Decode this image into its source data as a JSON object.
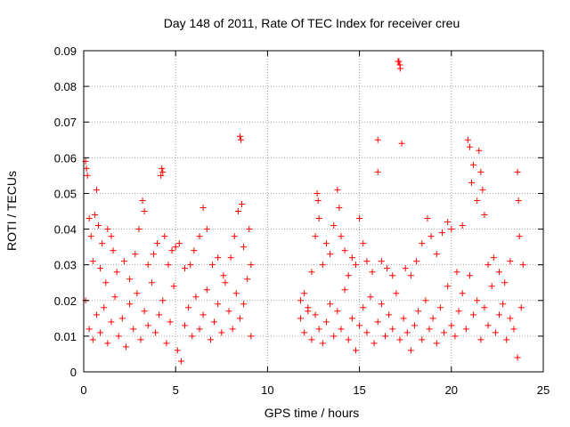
{
  "chart_data": {
    "type": "scatter",
    "title": "Day 148 of 2011, Rate Of TEC Index for receiver creu",
    "xlabel": "GPS time / hours",
    "ylabel": "ROTI / TECUs",
    "xlim": [
      0,
      25
    ],
    "ylim": [
      0,
      0.09
    ],
    "x_ticks": [
      0,
      5,
      10,
      15,
      20,
      25
    ],
    "y_ticks": [
      0,
      0.01,
      0.02,
      0.03,
      0.04,
      0.05,
      0.06,
      0.07,
      0.08,
      0.09
    ],
    "x_tick_labels": [
      "0",
      "5",
      "10",
      "15",
      "20",
      "25"
    ],
    "y_tick_labels": [
      "0",
      "0.01",
      "0.02",
      "0.03",
      "0.04",
      "0.05",
      "0.06",
      "0.07",
      "0.08",
      "0.09"
    ],
    "grid": true,
    "marker": "+",
    "color": "#ff0000",
    "series": [
      {
        "points": [
          [
            0.1,
            0.059
          ],
          [
            0.15,
            0.057
          ],
          [
            0.2,
            0.055
          ],
          [
            0.3,
            0.043
          ],
          [
            0.4,
            0.038
          ],
          [
            0.5,
            0.031
          ],
          [
            0.6,
            0.044
          ],
          [
            0.7,
            0.051
          ],
          [
            0.8,
            0.041
          ],
          [
            0.9,
            0.029
          ],
          [
            1.0,
            0.036
          ],
          [
            1.2,
            0.025
          ],
          [
            1.3,
            0.04
          ],
          [
            1.5,
            0.038
          ],
          [
            1.6,
            0.034
          ],
          [
            1.8,
            0.028
          ],
          [
            2.2,
            0.031
          ],
          [
            2.5,
            0.026
          ],
          [
            2.8,
            0.033
          ],
          [
            3.0,
            0.04
          ],
          [
            3.2,
            0.048
          ],
          [
            3.3,
            0.045
          ],
          [
            3.5,
            0.03
          ],
          [
            3.8,
            0.033
          ],
          [
            4.0,
            0.036
          ],
          [
            4.2,
            0.055
          ],
          [
            4.25,
            0.057
          ],
          [
            4.3,
            0.056
          ],
          [
            4.4,
            0.038
          ],
          [
            4.6,
            0.03
          ],
          [
            4.8,
            0.034
          ],
          [
            5.0,
            0.035
          ],
          [
            5.2,
            0.036
          ],
          [
            5.5,
            0.029
          ],
          [
            5.8,
            0.03
          ],
          [
            6.0,
            0.034
          ],
          [
            6.3,
            0.038
          ],
          [
            6.5,
            0.046
          ],
          [
            6.7,
            0.04
          ],
          [
            7.0,
            0.03
          ],
          [
            7.3,
            0.032
          ],
          [
            7.6,
            0.027
          ],
          [
            8.0,
            0.032
          ],
          [
            8.2,
            0.038
          ],
          [
            8.4,
            0.045
          ],
          [
            8.5,
            0.066
          ],
          [
            8.55,
            0.065
          ],
          [
            8.6,
            0.047
          ],
          [
            8.7,
            0.035
          ],
          [
            9.0,
            0.04
          ],
          [
            9.1,
            0.03
          ],
          [
            0.1,
            0.02
          ],
          [
            0.3,
            0.012
          ],
          [
            0.5,
            0.009
          ],
          [
            0.7,
            0.016
          ],
          [
            0.9,
            0.011
          ],
          [
            1.1,
            0.018
          ],
          [
            1.3,
            0.008
          ],
          [
            1.5,
            0.014
          ],
          [
            1.7,
            0.021
          ],
          [
            1.9,
            0.01
          ],
          [
            2.1,
            0.015
          ],
          [
            2.3,
            0.007
          ],
          [
            2.5,
            0.019
          ],
          [
            2.7,
            0.012
          ],
          [
            2.9,
            0.022
          ],
          [
            3.1,
            0.009
          ],
          [
            3.3,
            0.017
          ],
          [
            3.5,
            0.013
          ],
          [
            3.7,
            0.025
          ],
          [
            3.9,
            0.011
          ],
          [
            4.1,
            0.016
          ],
          [
            4.3,
            0.02
          ],
          [
            4.5,
            0.008
          ],
          [
            4.7,
            0.014
          ],
          [
            4.9,
            0.024
          ],
          [
            5.1,
            0.006
          ],
          [
            5.3,
            0.003
          ],
          [
            5.5,
            0.013
          ],
          [
            5.7,
            0.018
          ],
          [
            5.9,
            0.01
          ],
          [
            6.1,
            0.021
          ],
          [
            6.3,
            0.012
          ],
          [
            6.5,
            0.016
          ],
          [
            6.7,
            0.023
          ],
          [
            6.9,
            0.009
          ],
          [
            7.1,
            0.014
          ],
          [
            7.3,
            0.019
          ],
          [
            7.5,
            0.011
          ],
          [
            7.7,
            0.025
          ],
          [
            7.9,
            0.017
          ],
          [
            8.1,
            0.012
          ],
          [
            8.3,
            0.022
          ],
          [
            8.5,
            0.015
          ],
          [
            8.7,
            0.019
          ],
          [
            8.9,
            0.026
          ],
          [
            9.1,
            0.01
          ],
          [
            11.8,
            0.02
          ],
          [
            12.0,
            0.022
          ],
          [
            12.2,
            0.017
          ],
          [
            12.4,
            0.028
          ],
          [
            12.6,
            0.038
          ],
          [
            12.7,
            0.05
          ],
          [
            12.75,
            0.048
          ],
          [
            12.8,
            0.043
          ],
          [
            13.0,
            0.03
          ],
          [
            13.2,
            0.036
          ],
          [
            13.4,
            0.033
          ],
          [
            13.6,
            0.041
          ],
          [
            13.8,
            0.051
          ],
          [
            13.9,
            0.046
          ],
          [
            14.0,
            0.038
          ],
          [
            14.2,
            0.034
          ],
          [
            14.4,
            0.027
          ],
          [
            14.6,
            0.032
          ],
          [
            14.8,
            0.03
          ],
          [
            15.0,
            0.043
          ],
          [
            15.2,
            0.036
          ],
          [
            15.4,
            0.031
          ],
          [
            15.7,
            0.028
          ],
          [
            16.0,
            0.065
          ],
          [
            16.0,
            0.056
          ],
          [
            16.2,
            0.031
          ],
          [
            16.5,
            0.029
          ],
          [
            16.8,
            0.027
          ],
          [
            17.1,
            0.087
          ],
          [
            17.15,
            0.087
          ],
          [
            17.2,
            0.086
          ],
          [
            17.22,
            0.085
          ],
          [
            17.3,
            0.064
          ],
          [
            17.5,
            0.029
          ],
          [
            17.8,
            0.027
          ],
          [
            18.1,
            0.031
          ],
          [
            18.4,
            0.036
          ],
          [
            18.7,
            0.043
          ],
          [
            18.9,
            0.038
          ],
          [
            19.2,
            0.033
          ],
          [
            19.5,
            0.039
          ],
          [
            19.8,
            0.042
          ],
          [
            20.0,
            0.04
          ],
          [
            20.3,
            0.028
          ],
          [
            20.6,
            0.041
          ],
          [
            20.9,
            0.065
          ],
          [
            21.0,
            0.063
          ],
          [
            21.1,
            0.053
          ],
          [
            21.2,
            0.058
          ],
          [
            21.4,
            0.048
          ],
          [
            21.5,
            0.062
          ],
          [
            21.6,
            0.056
          ],
          [
            21.7,
            0.051
          ],
          [
            21.8,
            0.044
          ],
          [
            22.0,
            0.03
          ],
          [
            22.3,
            0.032
          ],
          [
            22.6,
            0.028
          ],
          [
            22.9,
            0.025
          ],
          [
            23.2,
            0.031
          ],
          [
            23.6,
            0.056
          ],
          [
            23.65,
            0.048
          ],
          [
            23.7,
            0.038
          ],
          [
            23.9,
            0.03
          ],
          [
            11.8,
            0.015
          ],
          [
            12.0,
            0.011
          ],
          [
            12.2,
            0.018
          ],
          [
            12.4,
            0.009
          ],
          [
            12.6,
            0.016
          ],
          [
            12.8,
            0.012
          ],
          [
            13.0,
            0.008
          ],
          [
            13.2,
            0.014
          ],
          [
            13.4,
            0.019
          ],
          [
            13.6,
            0.01
          ],
          [
            13.8,
            0.017
          ],
          [
            14.0,
            0.012
          ],
          [
            14.2,
            0.023
          ],
          [
            14.4,
            0.009
          ],
          [
            14.6,
            0.015
          ],
          [
            14.8,
            0.006
          ],
          [
            15.0,
            0.013
          ],
          [
            15.2,
            0.018
          ],
          [
            15.4,
            0.011
          ],
          [
            15.6,
            0.021
          ],
          [
            15.8,
            0.008
          ],
          [
            16.0,
            0.014
          ],
          [
            16.2,
            0.019
          ],
          [
            16.4,
            0.01
          ],
          [
            16.6,
            0.016
          ],
          [
            16.8,
            0.012
          ],
          [
            17.0,
            0.022
          ],
          [
            17.2,
            0.009
          ],
          [
            17.4,
            0.015
          ],
          [
            17.6,
            0.011
          ],
          [
            17.8,
            0.006
          ],
          [
            18.0,
            0.013
          ],
          [
            18.2,
            0.017
          ],
          [
            18.4,
            0.009
          ],
          [
            18.6,
            0.02
          ],
          [
            18.8,
            0.012
          ],
          [
            19.0,
            0.015
          ],
          [
            19.2,
            0.008
          ],
          [
            19.4,
            0.018
          ],
          [
            19.6,
            0.011
          ],
          [
            19.8,
            0.024
          ],
          [
            20.0,
            0.013
          ],
          [
            20.2,
            0.01
          ],
          [
            20.4,
            0.017
          ],
          [
            20.6,
            0.022
          ],
          [
            20.8,
            0.012
          ],
          [
            21.0,
            0.027
          ],
          [
            21.2,
            0.016
          ],
          [
            21.4,
            0.02
          ],
          [
            21.6,
            0.009
          ],
          [
            21.8,
            0.018
          ],
          [
            22.0,
            0.013
          ],
          [
            22.2,
            0.024
          ],
          [
            22.4,
            0.011
          ],
          [
            22.6,
            0.016
          ],
          [
            22.8,
            0.019
          ],
          [
            23.0,
            0.009
          ],
          [
            23.2,
            0.015
          ],
          [
            23.4,
            0.012
          ],
          [
            23.6,
            0.004
          ],
          [
            23.8,
            0.018
          ]
        ]
      }
    ]
  }
}
